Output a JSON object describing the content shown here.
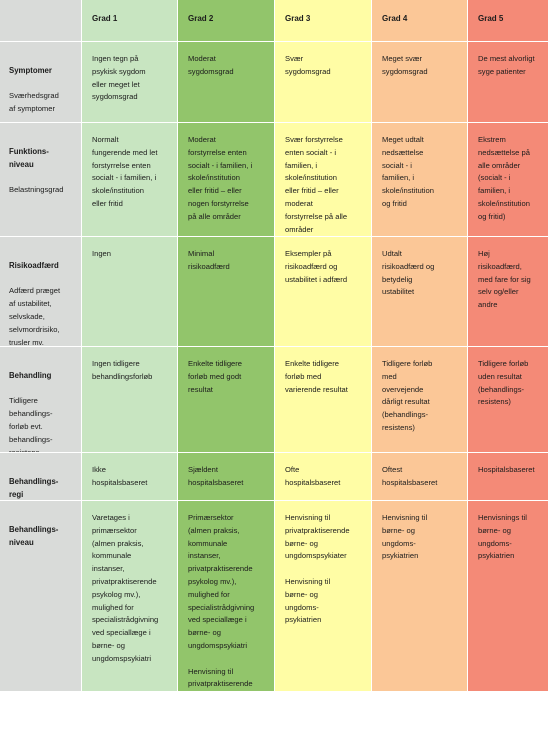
{
  "header": {
    "corner": "",
    "grades": [
      "Grad 1",
      "Grad 2",
      "Grad 3",
      "Grad 4",
      "Grad 5"
    ]
  },
  "rows": [
    {
      "title": "Symptomer",
      "subtitle": "Sværhedsgrad\naf symptomer",
      "cells": [
        "Ingen tegn på\npsykisk sygdom\neller meget let\nsygdomsgrad",
        "Moderat\nsygdomsgrad",
        "Svær\nsygdomsgrad",
        "Meget svær\nsygdomsgrad",
        "De mest alvorligt\nsyge patienter"
      ]
    },
    {
      "title": "Funktions-\nniveau",
      "subtitle": "Belastningsgrad",
      "cells": [
        "Normalt\nfungerende med let\nforstyrrelse enten\nsocialt - i familien, i\nskole/institution\neller fritid",
        "Moderat\nforstyrrelse enten\nsocialt - i familien, i\nskole/institution\neller fritid – eller\nnogen forstyrrelse\npå alle områder",
        "Svær forstyrrelse\nenten socialt - i\nfamilien, i\nskole/institution\neller fritid – eller\nmoderat\nforstyrrelse på alle\nområder",
        "Meget udtalt\nnedsættelse\nsocialt - i\nfamilien, i\nskole/institution\nog fritid",
        "Ekstrem\nnedsættelse på\nalle områder\n(socialt - i\nfamilien, i\nskole/institution\nog fritid)"
      ]
    },
    {
      "title": "Risikoadfærd",
      "subtitle": "Adfærd præget\naf ustabilitet,\nselvskade,\nselvmordrisiko,\ntrusler mv.",
      "cells": [
        "Ingen",
        "Minimal\nrisikoadfærd",
        "Eksempler på\nrisikoadfærd og\nustabilitet i adfærd",
        "Udtalt\nrisikoadfærd og\nbetydelig\nustabilitet",
        "Høj\nrisikoadfærd,\nmed fare for sig\nselv og/eller\nandre"
      ]
    },
    {
      "title": "Behandling",
      "subtitle": "Tidligere\nbehandlings-\nforløb evt.\nbehandlings-\nresistens",
      "cells": [
        "Ingen tidligere\nbehandlingsforløb",
        "Enkelte tidligere\nforløb med godt\nresultat",
        "Enkelte tidligere\nforløb med\nvarierende resultat",
        "Tidligere forløb\nmed\novervejende\ndårligt resultat\n(behandlings-\nresistens)",
        "Tidligere forløb\nuden resultat\n(behandlings-\nresistens)"
      ]
    },
    {
      "title": "Behandlings-\nregi",
      "subtitle": "",
      "cells": [
        "Ikke\nhospitalsbaseret",
        "Sjældent\nhospitalsbaseret",
        "Ofte\nhospitalsbaseret",
        "Oftest\nhospitalsbaseret",
        "Hospitalsbaseret"
      ]
    },
    {
      "title": "Behandlings-\nniveau",
      "subtitle": "",
      "cells": [
        "Varetages i\nprimærsektor\n(almen praksis,\nkommunale\ninstanser,\nprivatpraktiserende\npsykolog mv.),\nmulighed for\nspecialistrådgivning\nved speciallæge i\nbørne- og\nungdomspsykiatri",
        "Primærsektor\n(almen praksis,\nkommunale\ninstanser,\nprivatpraktiserende\npsykolog mv.),\nmulighed for\nspecialistrådgivning\nved speciallæge i\nbørne- og\nungdomspsykiatri",
        "Henvisning til\nprivatpraktiserende\nbørne- og\nungdomspsykiater",
        "Henvisning til\nbørne- og\nungdoms-\npsykiatrien",
        "Henvisnings til\nbørne- og\nungdoms-\npsykiatrien"
      ],
      "extra": {
        "c2": "Henvisning til\nprivatpraktiserende\nbørne- og\nungdomspsykiater",
        "c3": "Henvisning til\nbørne- og\nungdoms-\npsykiatrien"
      }
    }
  ]
}
